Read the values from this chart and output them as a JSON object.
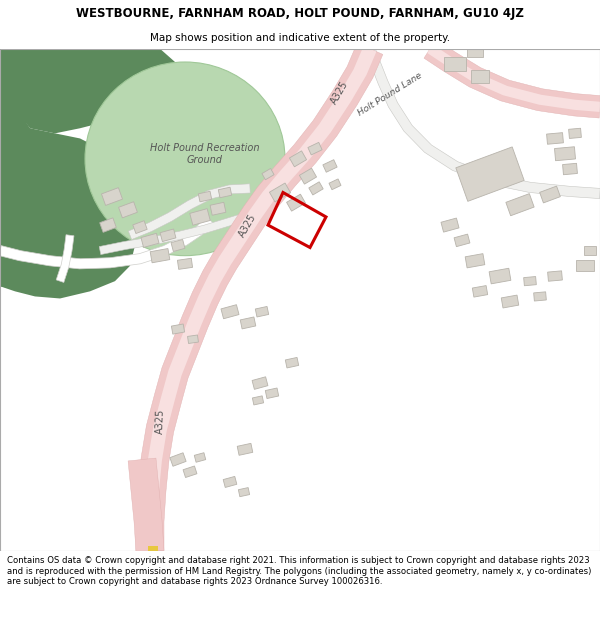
{
  "title_line1": "WESTBOURNE, FARNHAM ROAD, HOLT POUND, FARNHAM, GU10 4JZ",
  "title_line2": "Map shows position and indicative extent of the property.",
  "footer_text": "Contains OS data © Crown copyright and database right 2021. This information is subject to Crown copyright and database rights 2023 and is reproduced with the permission of HM Land Registry. The polygons (including the associated geometry, namely x, y co-ordinates) are subject to Crown copyright and database rights 2023 Ordnance Survey 100026316.",
  "bg_color": "#f7f5f2",
  "road_color_outer": "#f0c8c8",
  "road_color_inner": "#f8e0e0",
  "green_dark": "#5c8a5c",
  "green_rec": "#b8d8b0",
  "green_rec_edge": "#a0c898",
  "building_color": "#d8d4cc",
  "building_edge": "#b8b4ac",
  "road_outline": "#e0b0b0",
  "plot_color": "#cc0000",
  "text_dark": "#555555",
  "road_text": "#555555",
  "white_road": "#ffffff",
  "lane_color": "#e8e8e4",
  "yellow_strip": "#e8c840",
  "footer_bg": "#ffffff",
  "title_bg": "#ffffff"
}
